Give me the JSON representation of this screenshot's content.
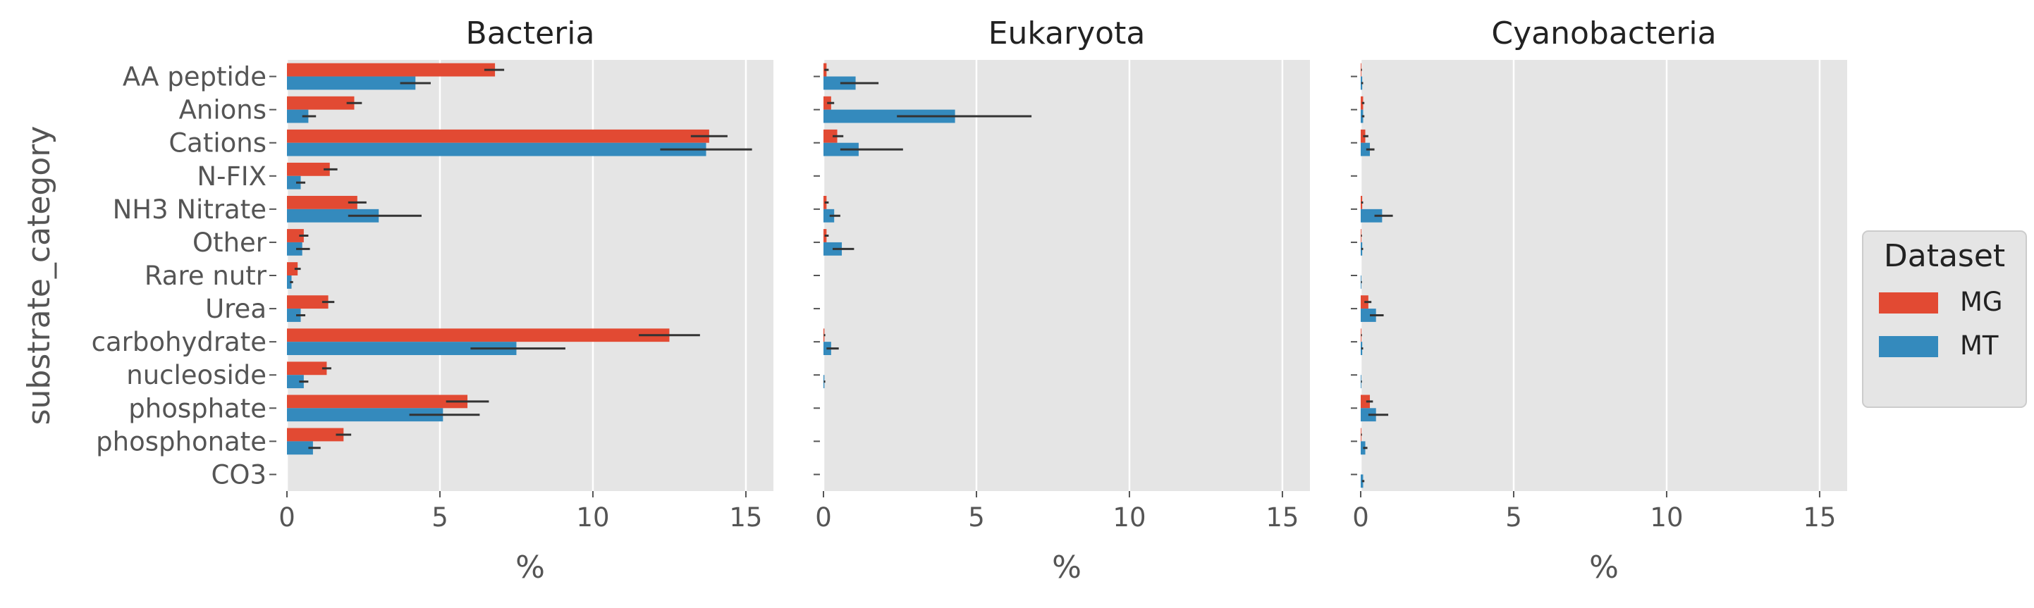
{
  "chart_data": {
    "type": "bar",
    "orientation": "horizontal",
    "y_axis_label": "substrate_category",
    "x_axis_label": "%",
    "xlim": [
      0,
      15.9
    ],
    "x_ticks": [
      "0",
      "5",
      "10",
      "15"
    ],
    "grid": true,
    "categories": [
      "AA peptide",
      "Anions",
      "Cations",
      "N-FIX",
      "NH3 Nitrate",
      "Other",
      "Rare nutr",
      "Urea",
      "carbohydrate",
      "nucleoside",
      "phosphate",
      "phosphonate",
      "CO3"
    ],
    "legend": {
      "title": "Dataset",
      "placement": "right",
      "entries": [
        {
          "name": "MG",
          "color": "#E24A33"
        },
        {
          "name": "MT",
          "color": "#348ABD"
        }
      ]
    },
    "panels": [
      {
        "title": "Bacteria",
        "series": [
          {
            "name": "MG",
            "color": "#E24A33",
            "values": [
              6.8,
              2.2,
              13.8,
              1.4,
              2.3,
              0.55,
              0.35,
              1.35,
              12.5,
              1.3,
              5.9,
              1.85,
              0
            ],
            "err_low": [
              6.45,
              1.95,
              13.2,
              1.2,
              2.0,
              0.4,
              0.25,
              1.15,
              11.5,
              1.15,
              5.2,
              1.6,
              0
            ],
            "err_high": [
              7.1,
              2.45,
              14.4,
              1.65,
              2.6,
              0.7,
              0.45,
              1.55,
              13.5,
              1.45,
              6.6,
              2.1,
              0
            ]
          },
          {
            "name": "MT",
            "color": "#348ABD",
            "values": [
              4.2,
              0.7,
              13.7,
              0.45,
              3.0,
              0.5,
              0.15,
              0.45,
              7.5,
              0.55,
              5.1,
              0.85,
              0
            ],
            "err_low": [
              3.7,
              0.5,
              12.2,
              0.3,
              2.0,
              0.3,
              0.1,
              0.3,
              6.0,
              0.4,
              4.0,
              0.7,
              0
            ],
            "err_high": [
              4.7,
              0.95,
              15.2,
              0.6,
              4.4,
              0.75,
              0.2,
              0.6,
              9.1,
              0.7,
              6.3,
              1.1,
              0
            ]
          }
        ]
      },
      {
        "title": "Eukaryota",
        "series": [
          {
            "name": "MG",
            "color": "#E24A33",
            "values": [
              0.1,
              0.25,
              0.45,
              0,
              0.1,
              0.1,
              0,
              0,
              0.03,
              0,
              0,
              0,
              0
            ],
            "err_low": [
              0.03,
              0.12,
              0.3,
              0,
              0.04,
              0.04,
              0,
              0,
              0.01,
              0,
              0,
              0,
              0
            ],
            "err_high": [
              0.17,
              0.35,
              0.65,
              0,
              0.17,
              0.17,
              0,
              0,
              0.06,
              0,
              0,
              0,
              0
            ]
          },
          {
            "name": "MT",
            "color": "#348ABD",
            "values": [
              1.05,
              4.3,
              1.15,
              0,
              0.35,
              0.6,
              0,
              0,
              0.25,
              0.03,
              0,
              0,
              0
            ],
            "err_low": [
              0.55,
              2.4,
              0.55,
              0,
              0.2,
              0.3,
              0,
              0,
              0.1,
              0.01,
              0,
              0,
              0
            ],
            "err_high": [
              1.8,
              6.8,
              2.6,
              0,
              0.55,
              1.0,
              0,
              0,
              0.5,
              0.06,
              0,
              0,
              0
            ]
          }
        ]
      },
      {
        "title": "Cyanobacteria",
        "series": [
          {
            "name": "MG",
            "color": "#E24A33",
            "values": [
              0.02,
              0.08,
              0.15,
              0,
              0.05,
              0.02,
              0,
              0.25,
              0.02,
              0,
              0.3,
              0.02,
              0
            ],
            "err_low": [
              0.01,
              0.04,
              0.08,
              0,
              0.02,
              0.01,
              0,
              0.12,
              0.01,
              0,
              0.18,
              0.01,
              0
            ],
            "err_high": [
              0.04,
              0.12,
              0.25,
              0,
              0.08,
              0.04,
              0,
              0.35,
              0.04,
              0,
              0.4,
              0.04,
              0
            ]
          },
          {
            "name": "MT",
            "color": "#348ABD",
            "values": [
              0.05,
              0.08,
              0.3,
              0,
              0.7,
              0.05,
              0.02,
              0.5,
              0.05,
              0.02,
              0.5,
              0.15,
              0.08
            ],
            "err_low": [
              0.02,
              0.04,
              0.18,
              0,
              0.45,
              0.02,
              0.01,
              0.3,
              0.02,
              0.01,
              0.25,
              0.08,
              0.04
            ],
            "err_high": [
              0.08,
              0.12,
              0.45,
              0,
              1.05,
              0.08,
              0.04,
              0.75,
              0.08,
              0.04,
              0.9,
              0.22,
              0.12
            ]
          }
        ]
      }
    ]
  }
}
